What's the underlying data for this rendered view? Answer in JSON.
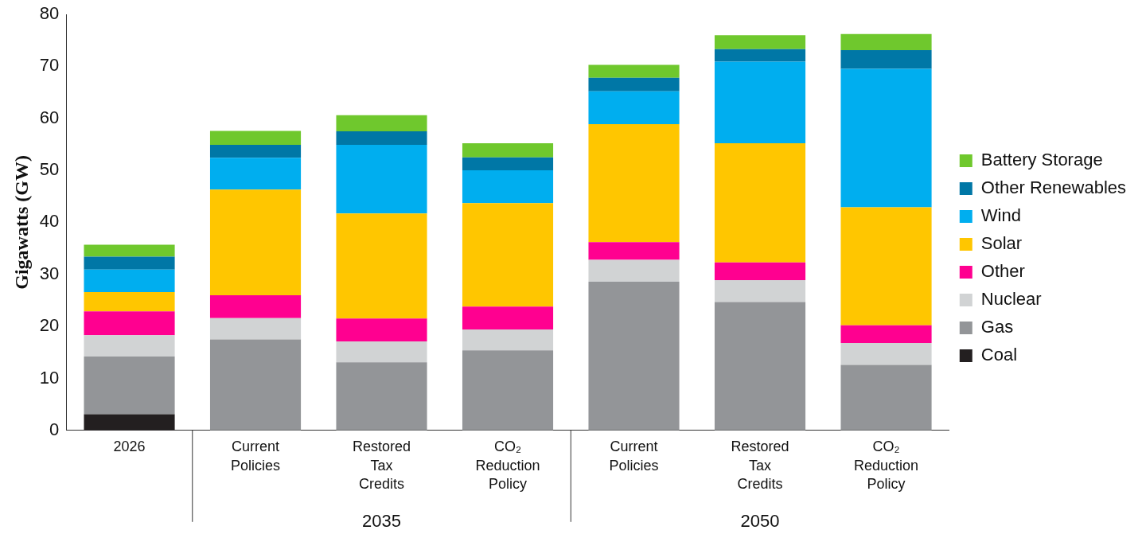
{
  "chart_data": {
    "type": "bar",
    "stacked": true,
    "ylabel": "Gigawatts (GW)",
    "categories": [
      "2026",
      "Current Policies",
      "Restored Tax Credits",
      "CO₂ Reduction Policy",
      "Current Policies",
      "Restored Tax Credits",
      "CO₂ Reduction Policy"
    ],
    "annotations": [
      "2035",
      "2050"
    ],
    "series": [
      {
        "name": "Coal",
        "color": "#231f20",
        "values": [
          3.1,
          null,
          0,
          0,
          0,
          null,
          0
        ]
      },
      {
        "name": "Gas",
        "color": "#939598",
        "values": [
          11.1,
          17.5,
          13.1,
          15.4,
          28.6,
          24.7,
          12.6
        ]
      },
      {
        "name": "Nuclear",
        "color": "#d1d3d4",
        "values": [
          4.1,
          4.1,
          4.0,
          4.0,
          4.2,
          4.2,
          4.2
        ]
      },
      {
        "name": "Other",
        "color": "#ff0090",
        "values": [
          4.6,
          4.4,
          4.4,
          4.4,
          3.4,
          3.4,
          3.4
        ]
      },
      {
        "name": "Solar",
        "color": "#ffc600",
        "values": [
          3.7,
          20.3,
          20.2,
          19.9,
          22.7,
          22.9,
          22.7
        ]
      },
      {
        "name": "Wind",
        "color": "#00aeef",
        "values": [
          4.3,
          6.1,
          13.2,
          6.3,
          6.3,
          15.7,
          26.6
        ]
      },
      {
        "name": "Other Renewables",
        "color": "#0077a6",
        "values": [
          2.5,
          2.5,
          2.6,
          2.5,
          2.6,
          2.4,
          3.6
        ]
      },
      {
        "name": "Battery Storage",
        "color": "#6fc82d",
        "values": [
          2.3,
          2.7,
          3.1,
          2.7,
          2.5,
          2.7,
          3.1
        ]
      }
    ],
    "ylim": [
      0,
      80
    ],
    "yticks": [
      0,
      10,
      20,
      30,
      40,
      50,
      60,
      70,
      80
    ],
    "grid": false,
    "legend": "right"
  }
}
